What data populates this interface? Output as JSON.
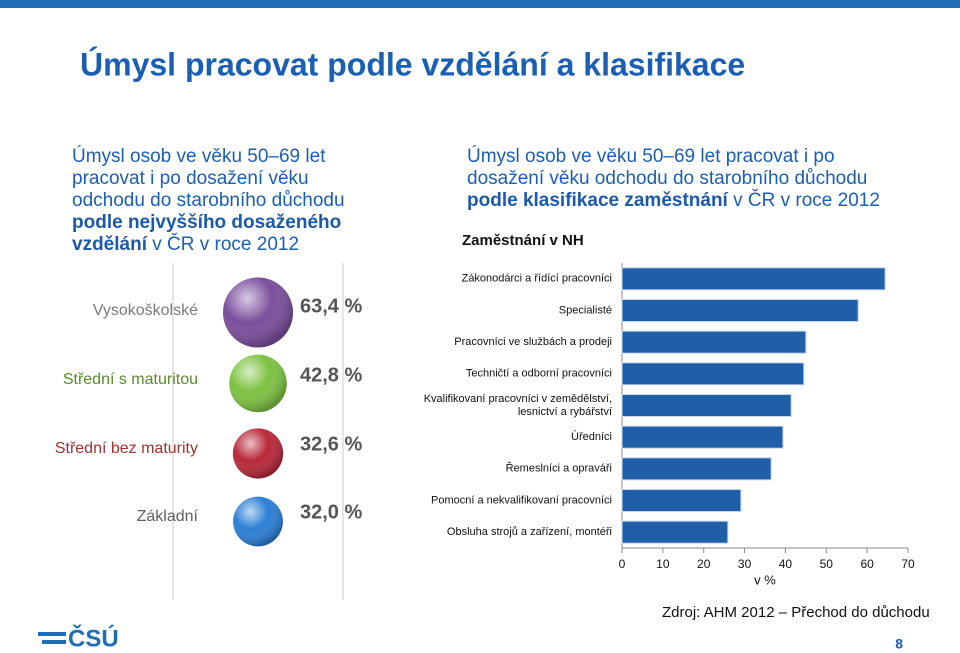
{
  "title": "Úmysl pracovat podle vzdělání a klasifikace",
  "left_text": [
    "Úmysl osob ve věku 50–69 let pracovat i po dosažení věku odchodu do starobního důchodu ",
    "podle nejvyššího dosaženého vzdělání",
    " v ČR v roce 2012"
  ],
  "right_text": [
    "Úmysl osob ve věku 50–69 let pracovat i po dosažení věku odchodu do starobního důchodu ",
    "podle klasifikace zaměstnání",
    " v  ČR v roce 2012"
  ],
  "source": "Zdroj: AHM 2012 – Přechod do důchodu",
  "page_number": "8",
  "logo": "ČSÚ",
  "chart_data": [
    {
      "type": "bubble",
      "categories": [
        "Vysokoškolské",
        "Střední s maturitou",
        "Střední bez maturity",
        "Základní"
      ],
      "label_colors": [
        "#7a7a7a",
        "#5a8a2a",
        "#a3322c",
        "#606060"
      ],
      "colors": [
        "#7b4f9d",
        "#7dc242",
        "#b8293b",
        "#2b80d6"
      ],
      "values": [
        63.4,
        42.8,
        32.6,
        32.0
      ],
      "value_labels": [
        "63,4 %",
        "42,8 %",
        "32,6 %",
        "32,0 %"
      ]
    },
    {
      "type": "barh",
      "subtitle": "Zaměstnání v NH",
      "categories": [
        "Zákonodárci a řídící pracovníci",
        "Specialisté",
        "Pracovníci ve službách a prodeji",
        "Techničtí a odborní pracovníci",
        "Kvalifikovaní pracovníci v zemědělství,\nlesnictví a rybářství",
        "Úředníci",
        "Řemeslníci a opraváři",
        "Pomocní a nekvalifikovaní pracovníci",
        "Obsluha strojů a zařízení, montéři"
      ],
      "values": [
        64.4,
        57.8,
        45.0,
        44.5,
        41.4,
        39.4,
        36.5,
        29.1,
        25.9
      ],
      "color": "#1f5fa8",
      "xlim": [
        0,
        70
      ],
      "xticks": [
        0,
        10,
        20,
        30,
        40,
        50,
        60,
        70
      ],
      "xlabel": "v %"
    }
  ]
}
